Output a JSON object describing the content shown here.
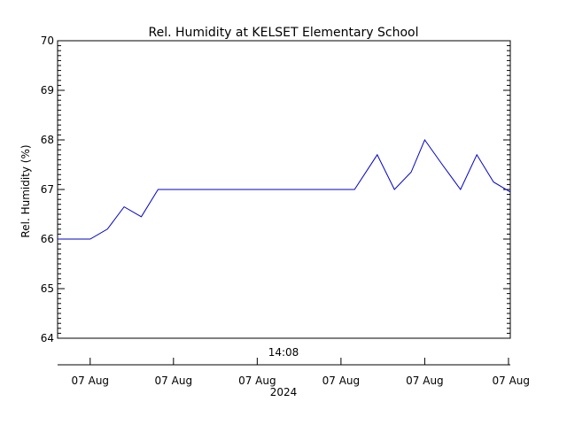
{
  "chart_data": {
    "type": "line",
    "title": "Rel. Humidity at KELSET Elementary School",
    "ylabel": "Rel. Humidity (%)",
    "ylim": [
      64,
      70
    ],
    "yticks": [
      64,
      65,
      66,
      67,
      68,
      69,
      70
    ],
    "xlim": [
      0,
      100
    ],
    "top_axis_label": "14:08",
    "xtick_labels": [
      "07 Aug",
      "07 Aug",
      "07 Aug",
      "07 Aug",
      "07 Aug",
      "07 Aug"
    ],
    "xtick_positions": [
      7.2,
      25.6,
      44.1,
      62.6,
      81.1,
      99.6
    ],
    "year_label": "2024",
    "grid": false,
    "series": [
      {
        "color": "#0000cc",
        "x": [
          0,
          7.2,
          11.0,
          14.7,
          18.5,
          22.2,
          40.0,
          65.6,
          70.6,
          74.4,
          78.1,
          81.1,
          85.0,
          89.0,
          92.6,
          96.3,
          100
        ],
        "y": [
          66.0,
          66.0,
          66.2,
          66.65,
          66.45,
          67.0,
          67.0,
          67.0,
          67.7,
          67.0,
          67.35,
          68.0,
          67.5,
          67.0,
          67.7,
          67.15,
          66.95
        ]
      }
    ]
  }
}
